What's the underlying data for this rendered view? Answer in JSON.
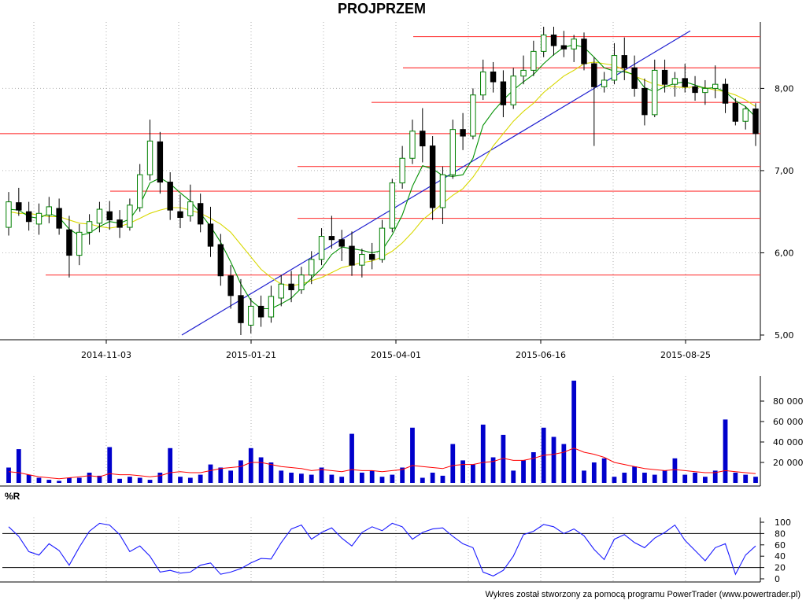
{
  "title": "PROJPRZEM",
  "footer": "Wykres został stworzony za pomocą programu PowerTrader (www.powertrader.pl)",
  "colors": {
    "bullish": "#008000",
    "bearish": "#000000",
    "ma_short": "#009000",
    "ma_long": "#d8d800",
    "level_line": "#ff4040",
    "trend_line": "#2020d0",
    "volume_bar": "#0000cc",
    "volume_avg": "#ff0000",
    "wr_line": "#1a1aff",
    "grid": "#b0b0b0"
  },
  "chart_data": [
    {
      "type": "candlestick",
      "title": "PROJPRZEM",
      "x_ticks": [
        "2014-11-03",
        "2015-01-21",
        "2015-04-01",
        "2015-06-16",
        "2015-08-25"
      ],
      "y_ticks": [
        "5,00",
        "6,00",
        "7,00",
        "8,00"
      ],
      "ylim": [
        5.0,
        8.75
      ],
      "grid": "dotted vertical",
      "series": [
        {
          "values": [
            [
              6.31,
              6.74,
              6.21,
              6.62
            ],
            [
              6.61,
              6.79,
              6.45,
              6.52
            ],
            [
              6.5,
              6.62,
              6.27,
              6.38
            ],
            [
              6.35,
              6.6,
              6.22,
              6.48
            ],
            [
              6.46,
              6.68,
              6.36,
              6.56
            ],
            [
              6.54,
              6.66,
              6.22,
              6.3
            ],
            [
              6.28,
              6.45,
              5.7,
              5.97
            ],
            [
              5.97,
              6.35,
              5.85,
              6.25
            ],
            [
              6.25,
              6.47,
              6.1,
              6.38
            ],
            [
              6.36,
              6.62,
              6.25,
              6.53
            ],
            [
              6.5,
              6.63,
              6.28,
              6.4
            ],
            [
              6.4,
              6.52,
              6.18,
              6.31
            ],
            [
              6.31,
              6.66,
              6.27,
              6.58
            ],
            [
              6.55,
              7.08,
              6.5,
              6.95
            ],
            [
              6.95,
              7.62,
              6.88,
              7.36
            ],
            [
              7.35,
              7.47,
              6.72,
              6.86
            ],
            [
              6.86,
              6.98,
              6.4,
              6.52
            ],
            [
              6.5,
              6.71,
              6.3,
              6.43
            ],
            [
              6.45,
              6.83,
              6.38,
              6.62
            ],
            [
              6.6,
              6.72,
              6.25,
              6.35
            ],
            [
              6.35,
              6.56,
              5.95,
              6.08
            ],
            [
              6.1,
              6.23,
              5.6,
              5.72
            ],
            [
              5.72,
              5.85,
              5.32,
              5.48
            ],
            [
              5.48,
              5.68,
              5.0,
              5.15
            ],
            [
              5.12,
              5.45,
              5.02,
              5.35
            ],
            [
              5.35,
              5.48,
              5.1,
              5.22
            ],
            [
              5.22,
              5.6,
              5.15,
              5.47
            ],
            [
              5.45,
              5.73,
              5.35,
              5.62
            ],
            [
              5.62,
              5.78,
              5.4,
              5.55
            ],
            [
              5.55,
              5.83,
              5.5,
              5.73
            ],
            [
              5.73,
              6.02,
              5.62,
              5.92
            ],
            [
              5.92,
              6.3,
              5.85,
              6.2
            ],
            [
              6.2,
              6.45,
              6.05,
              6.16
            ],
            [
              6.16,
              6.28,
              5.9,
              6.08
            ],
            [
              6.08,
              6.26,
              5.72,
              5.85
            ],
            [
              5.85,
              6.05,
              5.7,
              5.98
            ],
            [
              5.98,
              6.12,
              5.8,
              5.92
            ],
            [
              5.92,
              6.4,
              5.88,
              6.3
            ],
            [
              6.3,
              6.9,
              6.25,
              6.85
            ],
            [
              6.85,
              7.3,
              6.78,
              7.15
            ],
            [
              7.15,
              7.62,
              7.08,
              7.48
            ],
            [
              7.48,
              7.76,
              7.1,
              7.3
            ],
            [
              7.3,
              7.42,
              6.4,
              6.55
            ],
            [
              6.55,
              7.05,
              6.35,
              6.95
            ],
            [
              6.95,
              7.62,
              6.9,
              7.5
            ],
            [
              7.5,
              7.7,
              7.25,
              7.42
            ],
            [
              7.42,
              8.0,
              7.38,
              7.92
            ],
            [
              7.92,
              8.35,
              7.86,
              8.2
            ],
            [
              8.2,
              8.32,
              7.95,
              8.08
            ],
            [
              8.08,
              8.22,
              7.65,
              7.8
            ],
            [
              7.8,
              8.25,
              7.75,
              8.15
            ],
            [
              8.15,
              8.4,
              8.05,
              8.22
            ],
            [
              8.22,
              8.58,
              8.15,
              8.45
            ],
            [
              8.45,
              8.75,
              8.38,
              8.65
            ],
            [
              8.65,
              8.75,
              8.4,
              8.52
            ],
            [
              8.52,
              8.7,
              8.38,
              8.48
            ],
            [
              8.48,
              8.65,
              8.32,
              8.6
            ],
            [
              8.6,
              8.68,
              8.22,
              8.3
            ],
            [
              8.3,
              8.38,
              7.3,
              8.02
            ],
            [
              8.02,
              8.2,
              7.95,
              8.1
            ],
            [
              8.1,
              8.55,
              8.05,
              8.4
            ],
            [
              8.4,
              8.62,
              8.1,
              8.25
            ],
            [
              8.25,
              8.4,
              7.9,
              8.0
            ],
            [
              8.0,
              8.12,
              7.55,
              7.68
            ],
            [
              7.68,
              8.35,
              7.65,
              8.22
            ],
            [
              8.22,
              8.35,
              7.95,
              8.05
            ],
            [
              8.05,
              8.2,
              7.9,
              8.12
            ],
            [
              8.12,
              8.3,
              7.95,
              8.02
            ],
            [
              8.02,
              8.15,
              7.85,
              7.95
            ],
            [
              7.95,
              8.1,
              7.8,
              8.0
            ],
            [
              8.0,
              8.28,
              7.88,
              8.05
            ],
            [
              8.05,
              8.12,
              7.7,
              7.82
            ],
            [
              7.82,
              7.88,
              7.55,
              7.6
            ],
            [
              7.6,
              7.78,
              7.5,
              7.75
            ],
            [
              7.75,
              7.82,
              7.3,
              7.45
            ]
          ]
        },
        {
          "name": "",
          "values": [
            6.53,
            6.52,
            6.44,
            6.42,
            6.48,
            6.43,
            6.29,
            6.21,
            6.24,
            6.32,
            6.38,
            6.36,
            6.41,
            6.58,
            6.85,
            6.91,
            6.84,
            6.73,
            6.63,
            6.48,
            6.32,
            6.13,
            5.89,
            5.62,
            5.42,
            5.32,
            5.32,
            5.38,
            5.45,
            5.57,
            5.69,
            5.81,
            5.98,
            6.07,
            6.05,
            6.03,
            6.0,
            6.03,
            6.22,
            6.46,
            6.81,
            7.06,
            7.02,
            6.94,
            6.93,
            6.95,
            7.15,
            7.55,
            7.72,
            7.86,
            7.98,
            8.08,
            8.17,
            8.3,
            8.41,
            8.5,
            8.53,
            8.5,
            8.38,
            8.25,
            8.21,
            8.2,
            8.17,
            8.01,
            7.96,
            8.02,
            8.06,
            8.08,
            8.04,
            8.0,
            8.01,
            7.96,
            7.85,
            7.78,
            7.65
          ]
        },
        {
          "name": "",
          "values": [
            6.5,
            6.48,
            6.48,
            6.46,
            6.44,
            6.44,
            6.4,
            6.36,
            6.35,
            6.32,
            6.3,
            6.32,
            6.36,
            6.42,
            6.48,
            6.52,
            6.55,
            6.55,
            6.52,
            6.48,
            6.42,
            6.35,
            6.25,
            6.1,
            5.95,
            5.8,
            5.7,
            5.62,
            5.6,
            5.62,
            5.66,
            5.7,
            5.76,
            5.82,
            5.85,
            5.88,
            5.9,
            5.95,
            6.02,
            6.12,
            6.25,
            6.4,
            6.5,
            6.6,
            6.7,
            6.78,
            6.92,
            7.1,
            7.3,
            7.45,
            7.6,
            7.72,
            7.82,
            7.95,
            8.05,
            8.15,
            8.22,
            8.3,
            8.32,
            8.3,
            8.28,
            8.22,
            8.15,
            8.1,
            8.05,
            8.03,
            8.02,
            8.01,
            8.02,
            8.01,
            7.98,
            7.96,
            7.92,
            7.86,
            7.78
          ]
        }
      ],
      "horizontal_levels": [
        5.73,
        6.42,
        6.75,
        7.05,
        7.45,
        7.83,
        8.25,
        8.63
      ],
      "trend_line": {
        "from": [
          "2014-12",
          5.0
        ],
        "to": [
          "2015-09",
          8.7
        ]
      }
    },
    {
      "type": "bar",
      "y_ticks": [
        "20 000",
        "40 000",
        "60 000",
        "80 000"
      ],
      "ylim": [
        0,
        100000
      ],
      "series": [
        {
          "values": [
            15000,
            33000,
            8000,
            5000,
            3000,
            2000,
            5000,
            5000,
            10000,
            7000,
            35000,
            4000,
            6000,
            5000,
            3000,
            10000,
            34000,
            6000,
            5000,
            8000,
            18000,
            15000,
            12000,
            22000,
            34000,
            25000,
            20000,
            12000,
            10000,
            9000,
            8000,
            15000,
            8000,
            6000,
            48000,
            10000,
            12000,
            6000,
            8000,
            15000,
            54000,
            5000,
            10000,
            7000,
            38000,
            22000,
            18000,
            57000,
            25000,
            47000,
            12000,
            22000,
            30000,
            54000,
            45000,
            38000,
            100000,
            12000,
            20000,
            24000,
            6000,
            10000,
            16000,
            10000,
            8000,
            12000,
            24000,
            8000,
            10000,
            6000,
            12000,
            62000,
            10000,
            8000,
            6000
          ]
        },
        {
          "name": "",
          "values": [
            11000,
            10000,
            8000,
            6000,
            5000,
            4000,
            5000,
            6000,
            7000,
            6000,
            9000,
            8000,
            8000,
            7000,
            6000,
            7000,
            10000,
            11000,
            10000,
            10000,
            12000,
            14000,
            15000,
            16000,
            20000,
            20000,
            18000,
            16000,
            15000,
            14000,
            12000,
            13000,
            12000,
            11000,
            13000,
            12000,
            12000,
            11000,
            12000,
            13000,
            17000,
            16000,
            15000,
            14000,
            17000,
            18000,
            18000,
            20000,
            21000,
            24000,
            22000,
            22000,
            24000,
            27000,
            28000,
            30000,
            34000,
            30000,
            28000,
            25000,
            20000,
            18000,
            16000,
            14000,
            13000,
            12000,
            13000,
            12000,
            11000,
            10000,
            10000,
            12000,
            11000,
            10000,
            9000
          ]
        }
      ]
    },
    {
      "type": "line",
      "title": "%R",
      "y_ticks": [
        "0",
        "20",
        "40",
        "60",
        "80",
        "100"
      ],
      "ylim": [
        0,
        100
      ],
      "reference_lines": [
        20,
        80
      ],
      "series": [
        {
          "name": "%R",
          "values": [
            92,
            75,
            48,
            42,
            62,
            50,
            24,
            56,
            84,
            98,
            95,
            78,
            48,
            58,
            40,
            12,
            15,
            10,
            12,
            24,
            28,
            8,
            12,
            18,
            28,
            36,
            35,
            64,
            88,
            95,
            70,
            82,
            90,
            72,
            58,
            82,
            92,
            85,
            98,
            92,
            70,
            82,
            88,
            90,
            75,
            62,
            55,
            12,
            5,
            15,
            40,
            78,
            84,
            96,
            92,
            80,
            88,
            76,
            52,
            34,
            70,
            78,
            64,
            55,
            72,
            82,
            95,
            68,
            50,
            32,
            55,
            62,
            8,
            42,
            58
          ]
        }
      ]
    }
  ]
}
